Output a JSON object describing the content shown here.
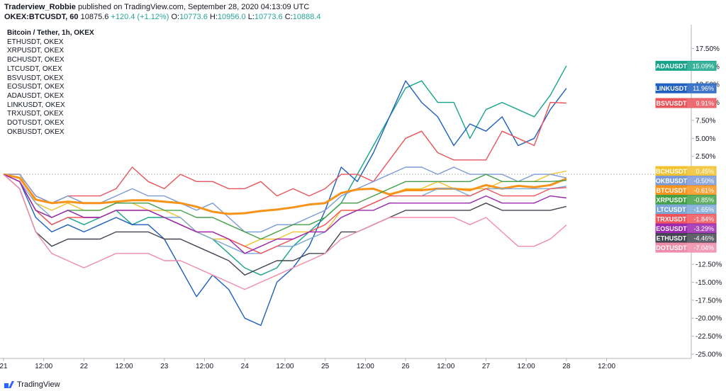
{
  "header": {
    "author": "Traderview_Robbie",
    "published": "published on TradingView.com, September 28, 2020 04:13:09 UTC"
  },
  "quote": {
    "symbol": "OKEX:BTCUSDT, 60",
    "last": "10875.6",
    "change": "+120.4 (+1.12%)",
    "o_label": "O:",
    "o": "10773.6",
    "h_label": "H:",
    "h": "10956.0",
    "l_label": "L:",
    "l": "10773.6",
    "c_label": "C:",
    "c": "10888.4"
  },
  "legend_items": [
    "Bitcoin / Tether, 1h, OKEX",
    "ETHUSDT, OKEX",
    "XRPUSDT, OKEX",
    "BCHUSDT, OKEX",
    "LTCUSDT, OKEX",
    "BSVUSDT, OKEX",
    "EOSUSDT, OKEX",
    "ADAUSDT, OKEX",
    "LINKUSDT, OKEX",
    "TRXUSDT, OKEX",
    "DOTUSDT, OKEX",
    "OKBUSDT, OKEX"
  ],
  "footer": {
    "brand": "TradingView"
  },
  "colors": {
    "BTC": "#f7931a",
    "ETH": "#434651",
    "XRP": "#43a047",
    "BCH": "#f2c12e",
    "LTC": "#7aa7d6",
    "BSV": "#e8545a",
    "EOS": "#9c27b0",
    "ADA": "#18a48a",
    "LINK": "#1e5fbf",
    "TRX": "#f0545a",
    "DOT": "#f08cab",
    "OKB": "#7b9ad8"
  },
  "chart_data": {
    "type": "line",
    "title": "",
    "xlabel": "",
    "ylabel": "",
    "ylim": [
      -25,
      20
    ],
    "yticks": [
      "17.50%",
      "15.00%",
      "12.50%",
      "10.00%",
      "7.50%",
      "5.00%",
      "2.50%",
      "-12.50%",
      "-15.00%",
      "-17.50%",
      "-20.00%",
      "-22.50%",
      "-25.00%"
    ],
    "ytick_values": [
      17.5,
      15,
      12.5,
      10,
      7.5,
      5,
      2.5,
      -12.5,
      -15,
      -17.5,
      -20,
      -22.5,
      -25
    ],
    "x_range": [
      0,
      80
    ],
    "xticks": [
      "21",
      "12:00",
      "22",
      "12:00",
      "23",
      "12:00",
      "24",
      "12:00",
      "25",
      "12:00",
      "26",
      "12:00",
      "27",
      "12:00",
      "28",
      "12:00"
    ],
    "xtick_values": [
      0,
      5,
      10,
      15,
      20,
      25,
      30,
      35,
      40,
      45,
      50,
      55,
      60,
      65,
      70,
      75
    ],
    "grid": false,
    "x": [
      0,
      2,
      4,
      6,
      8,
      10,
      12,
      14,
      16,
      18,
      20,
      22,
      24,
      26,
      28,
      30,
      32,
      34,
      36,
      38,
      40,
      42,
      44,
      46,
      48,
      50,
      52,
      54,
      56,
      58,
      60,
      62,
      64,
      66,
      68,
      70
    ],
    "series": [
      {
        "name": "ADAUSDT",
        "label": "15.09%",
        "key": "ADA",
        "values": [
          0,
          -1,
          -5,
          -7,
          -6,
          -7,
          -6,
          -5,
          -7,
          -6,
          -6,
          -7,
          -8,
          -9,
          -11,
          -13,
          -14,
          -13,
          -10,
          -8,
          -6,
          -4,
          0,
          4,
          8,
          12,
          13,
          10,
          10,
          5,
          9,
          10,
          9,
          8,
          11,
          15.09
        ]
      },
      {
        "name": "LINKUSDT",
        "label": "11.96%",
        "key": "LINK",
        "values": [
          0,
          -1,
          -6,
          -8,
          -7,
          -8,
          -7,
          -6,
          -7,
          -7,
          -9,
          -13,
          -17,
          -14,
          -16,
          -20,
          -21,
          -15,
          -13,
          -10,
          -5,
          1,
          -1,
          3,
          8,
          13,
          10,
          8,
          4,
          7,
          6,
          8,
          4,
          5,
          9,
          11.96
        ]
      },
      {
        "name": "BSVUSDT",
        "label": "9.91%",
        "key": "BSV",
        "values": [
          0,
          0,
          -3,
          -4,
          -3,
          -3,
          -3,
          -2,
          1,
          -1,
          -2,
          0,
          -1,
          -1,
          -2,
          -2,
          -1,
          -3,
          -2,
          -3,
          -2,
          0,
          0,
          -1,
          2,
          5,
          6,
          3,
          2,
          2,
          2,
          6,
          5,
          4,
          10,
          9.91
        ]
      },
      {
        "name": "BCHUSDT",
        "label": "0.45%",
        "key": "BCH",
        "values": [
          0,
          0,
          -4,
          -5,
          -4,
          -5,
          -5,
          -4,
          -4,
          -5,
          -5,
          -6,
          -8,
          -9,
          -9,
          -10,
          -9,
          -9,
          -8,
          -8,
          -8,
          -5,
          -5,
          -4,
          -3,
          -2,
          -2,
          -1,
          -2,
          -2,
          -2,
          -1,
          -1,
          -1,
          0,
          0.45
        ]
      },
      {
        "name": "OKBUSDT",
        "label": "-0.50%",
        "key": "OKB",
        "values": [
          0,
          0,
          -3,
          -4,
          -3,
          -4,
          -4,
          -3,
          -2,
          -3,
          -3,
          -4,
          -5,
          -4,
          -6,
          -8,
          -8,
          -7,
          -7,
          -6,
          -5,
          -3,
          -2,
          -1,
          0,
          1,
          1,
          0,
          1,
          0,
          0,
          0,
          -1,
          0,
          0,
          -0.5
        ]
      },
      {
        "name": "BTCUSDT",
        "label": "-0.61%",
        "key": "BTC",
        "values": [
          0,
          -0.5,
          -3.5,
          -4,
          -3.8,
          -4,
          -4,
          -3.8,
          -3.6,
          -3.6,
          -3.8,
          -4,
          -4.5,
          -5.2,
          -5.5,
          -5.4,
          -5.1,
          -4.9,
          -4.6,
          -4.2,
          -4,
          -2.6,
          -2.1,
          -2,
          -2.8,
          -2.2,
          -2.2,
          -2,
          -2,
          -2.2,
          -1.5,
          -2,
          -1.6,
          -1.8,
          -1.5,
          -0.61
        ]
      },
      {
        "name": "XRPUSDT",
        "label": "-0.85%",
        "key": "XRP",
        "values": [
          0,
          -1,
          -5,
          -6,
          -5,
          -5,
          -5,
          -4,
          -4,
          -4,
          -5,
          -5,
          -6,
          -6,
          -7,
          -8,
          -9,
          -8,
          -7,
          -7,
          -6,
          -4,
          -4,
          -3,
          -2,
          -1,
          -1,
          -1,
          -1,
          -1,
          0,
          -1,
          -1,
          -1,
          -1,
          -0.85
        ]
      },
      {
        "name": "LTCUSDT",
        "label": "-1.65%",
        "key": "LTC",
        "values": [
          0,
          -1,
          -4,
          -6,
          -5,
          -6,
          -6,
          -5,
          -5,
          -5,
          -6,
          -6,
          -8,
          -9,
          -10,
          -11,
          -11,
          -10,
          -10,
          -9,
          -8,
          -6,
          -5,
          -4,
          -3,
          -3,
          -3,
          -2,
          -2,
          -3,
          -2,
          -2,
          -2,
          -2,
          -2,
          -1.65
        ]
      },
      {
        "name": "TRXUSDT",
        "label": "-1.84%",
        "key": "TRX",
        "values": [
          0,
          -1,
          -5,
          -7,
          -6,
          -6,
          -6,
          -5,
          -5,
          -5,
          -6,
          -7,
          -8,
          -8,
          -9,
          -10,
          -11,
          -10,
          -9,
          -8,
          -7,
          -5,
          -5,
          -4,
          -3,
          -3,
          -3,
          -3,
          -3,
          -3,
          -2,
          -3,
          -3,
          -3,
          -2,
          -1.84
        ]
      },
      {
        "name": "EOSUSDT",
        "label": "-3.29%",
        "key": "EOS",
        "values": [
          0,
          -1,
          -5,
          -6,
          -5,
          -6,
          -6,
          -5,
          -5,
          -5,
          -6,
          -7,
          -8,
          -8,
          -9,
          -11,
          -10,
          -9,
          -9,
          -8,
          -8,
          -6,
          -5,
          -5,
          -4,
          -4,
          -4,
          -4,
          -4,
          -4,
          -3,
          -4,
          -4,
          -4,
          -3,
          -3.29
        ]
      },
      {
        "name": "ETHUSDT",
        "label": "-4.46%",
        "key": "ETH",
        "values": [
          0,
          -2,
          -8,
          -10,
          -9,
          -9,
          -9,
          -8,
          -8,
          -8,
          -9,
          -9,
          -10,
          -11,
          -12,
          -14,
          -13,
          -12,
          -12,
          -11,
          -11,
          -8,
          -8,
          -7,
          -6,
          -5,
          -5,
          -5,
          -5,
          -5,
          -4,
          -5,
          -5,
          -5,
          -5,
          -4.46
        ]
      },
      {
        "name": "DOTUSDT",
        "label": "-7.04%",
        "key": "DOT",
        "values": [
          0,
          -2,
          -8,
          -11,
          -12,
          -13,
          -12,
          -11,
          -11,
          -11,
          -12,
          -12,
          -13,
          -14,
          -15,
          -16,
          -15,
          -14,
          -13,
          -12,
          -11,
          -9,
          -8,
          -7,
          -6,
          -6,
          -6,
          -6,
          -6,
          -7,
          -6,
          -8,
          -10,
          -10,
          -9,
          -7.04
        ]
      }
    ]
  }
}
